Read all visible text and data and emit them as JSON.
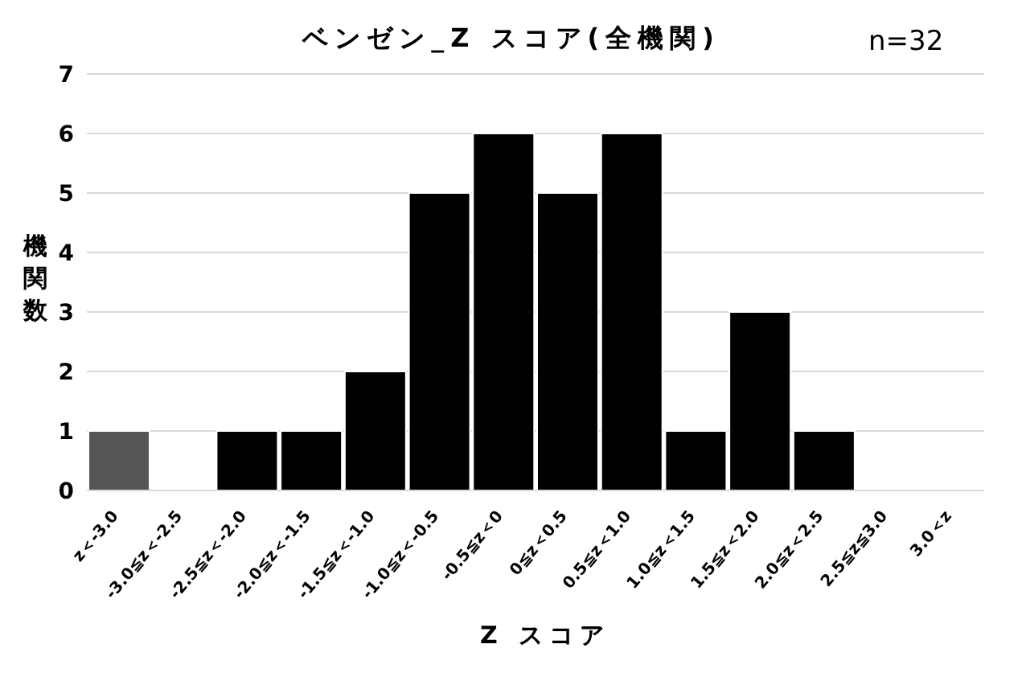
{
  "chart_data": {
    "type": "bar",
    "title": "ベンゼン_Z スコア(全機関)",
    "annotations": [
      "n=32"
    ],
    "xlabel": "Z スコア",
    "ylabel": "機関数",
    "categories": [
      "z＜-3.0",
      "-3.0≦z＜-2.5",
      "-2.5≦z＜-2.0",
      "-2.0≦z＜-1.5",
      "-1.5≦z＜-1.0",
      "-1.0≦z＜-0.5",
      "-0.5≦z＜0",
      "0≦z＜0.5",
      "0.5≦z＜1.0",
      "1.0≦z＜1.5",
      "1.5≦z＜2.0",
      "2.0≦z＜2.5",
      "2.5≦z≦3.0",
      "3.0＜z"
    ],
    "values": [
      1,
      0,
      1,
      1,
      2,
      5,
      6,
      5,
      6,
      1,
      3,
      1,
      0,
      0
    ],
    "colors": [
      "#555555",
      "#000000",
      "#000000",
      "#000000",
      "#000000",
      "#000000",
      "#000000",
      "#000000",
      "#000000",
      "#000000",
      "#000000",
      "#000000",
      "#000000",
      "#000000"
    ],
    "ylim": [
      0,
      7
    ],
    "yticks": [
      0,
      1,
      2,
      3,
      4,
      5,
      6,
      7
    ],
    "grid": "y"
  }
}
